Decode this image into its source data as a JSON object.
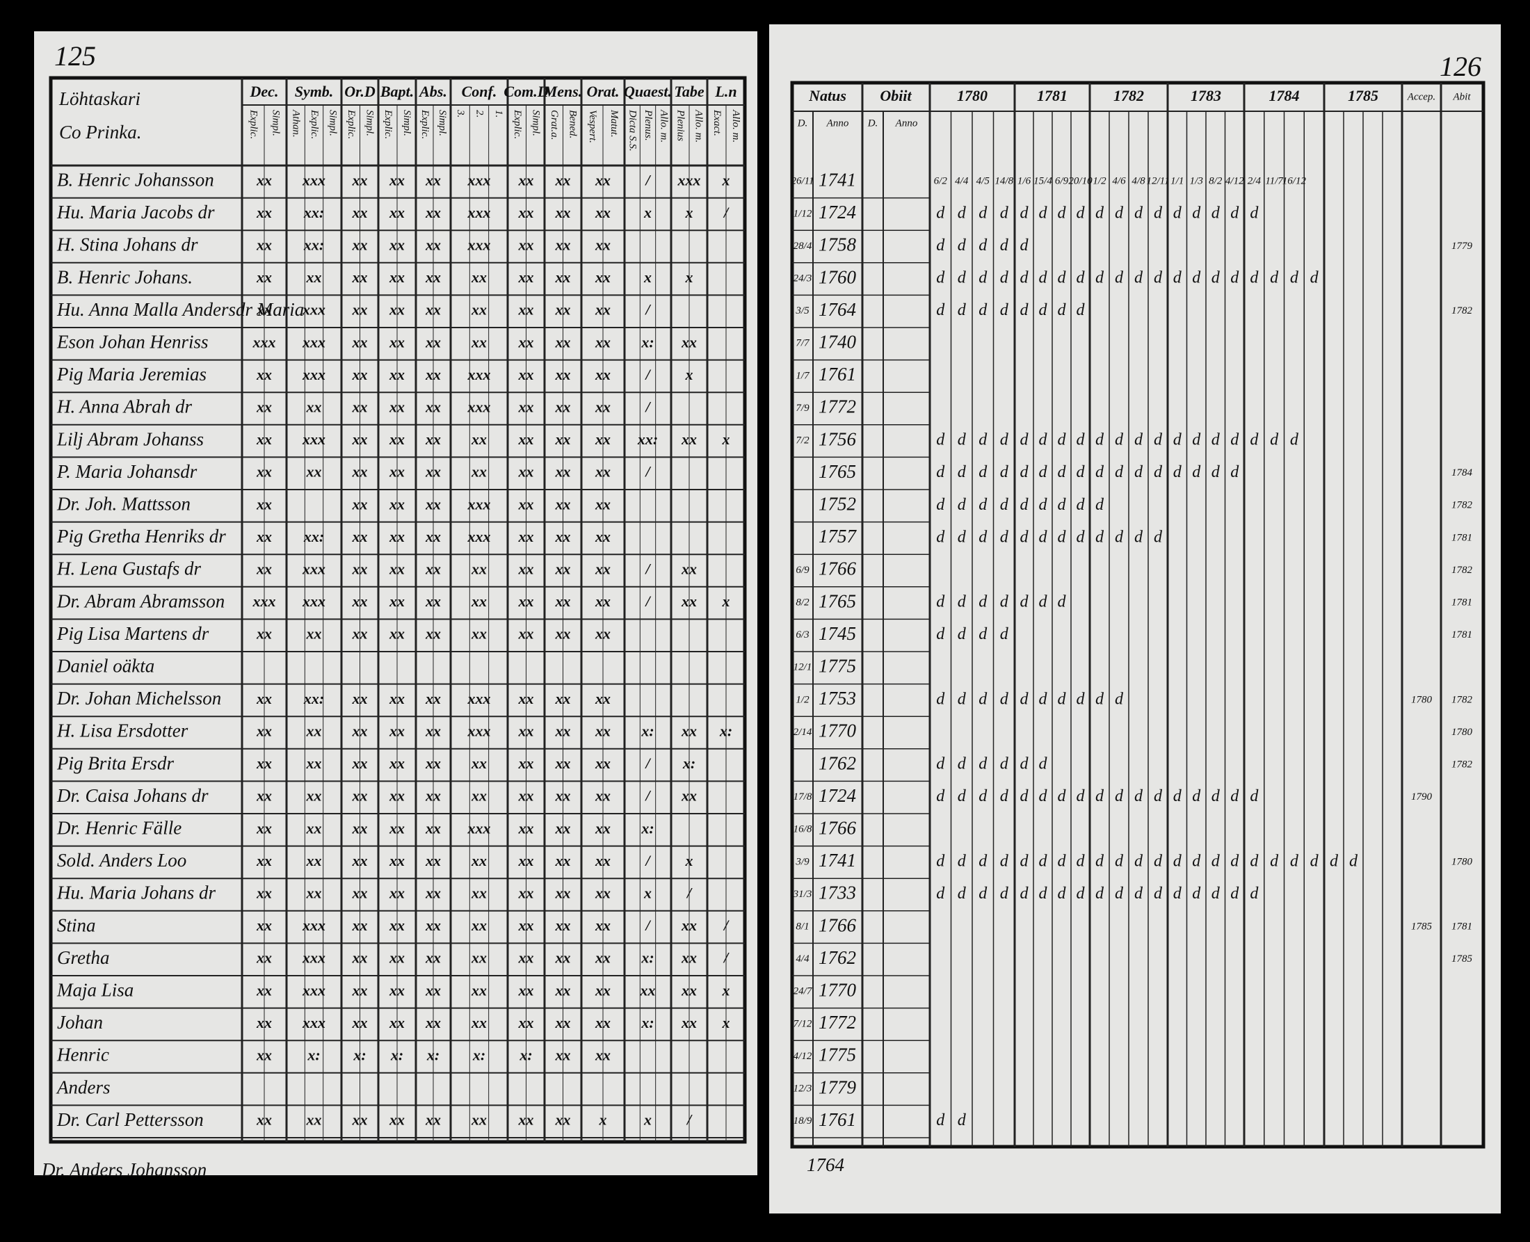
{
  "left_page": {
    "page_number": "125",
    "title_lines": [
      "Löhtaskari",
      "Co Prinka."
    ],
    "headers": [
      {
        "label": "Dec.",
        "sub": [
          "Explic.",
          "Simpl."
        ]
      },
      {
        "label": "Symb.",
        "sub": [
          "Athan.",
          "Explic.",
          "Simpl."
        ]
      },
      {
        "label": "Or.D",
        "sub": [
          "Explic.",
          "Simpl."
        ]
      },
      {
        "label": "Bapt.",
        "sub": [
          "Explic.",
          "Simpl."
        ]
      },
      {
        "label": "Abs.",
        "sub": [
          "Explic.",
          "Simpl."
        ]
      },
      {
        "label": "Conf.",
        "sub": [
          "3.",
          "2.",
          "1."
        ]
      },
      {
        "label": "Com.D",
        "sub": [
          "Explic.",
          "Simpl."
        ]
      },
      {
        "label": "Mens.",
        "sub": [
          "Grat.a.",
          "Bened."
        ]
      },
      {
        "label": "Orat.",
        "sub": [
          "Vespert.",
          "Matut."
        ]
      },
      {
        "label": "Quaest.",
        "sub": [
          "Dicta S.S.",
          "Plenus.",
          "Allo. m."
        ]
      },
      {
        "label": "Tabe",
        "sub": [
          "Plenius",
          "Allo. m."
        ]
      },
      {
        "label": "L.n",
        "sub": [
          "Exact.",
          "Allo. m."
        ]
      }
    ],
    "rows": [
      {
        "name": "B. Henric Johansson",
        "marks": [
          "xx",
          "xxx",
          "xx",
          "xx",
          "xx",
          "xxx",
          "xx",
          "xx",
          "xx",
          "/",
          "xxx",
          "x"
        ]
      },
      {
        "name": "Hu. Maria Jacobs dr",
        "marks": [
          "xx",
          "xx:",
          "xx",
          "xx",
          "xx",
          "xxx",
          "xx",
          "xx",
          "xx",
          "x",
          "x",
          "/"
        ]
      },
      {
        "name": "H. Stina Johans dr",
        "marks": [
          "xx",
          "xx:",
          "xx",
          "xx",
          "xx",
          "xxx",
          "xx",
          "xx",
          "xx"
        ]
      },
      {
        "name": "B. Henric Johans.",
        "marks": [
          "xx",
          "xx",
          "xx",
          "xx",
          "xx",
          "xx",
          "xx",
          "xx",
          "xx",
          "x",
          "x"
        ]
      },
      {
        "name": "Hu. Anna Malla Andersdr Maria",
        "marks": [
          "xx",
          "xxx",
          "xx",
          "xx",
          "xx",
          "xx",
          "xx",
          "xx",
          "xx",
          "/"
        ]
      },
      {
        "name": "Eson Johan Henriss",
        "marks": [
          "xxx",
          "xxx",
          "xx",
          "xx",
          "xx",
          "xx",
          "xx",
          "xx",
          "xx",
          "x:",
          "xx"
        ]
      },
      {
        "name": "Pig Maria Jeremias",
        "marks": [
          "xx",
          "xxx",
          "xx",
          "xx",
          "xx",
          "xxx",
          "xx",
          "xx",
          "xx",
          "/",
          "x"
        ]
      },
      {
        "name": "H. Anna Abrah dr",
        "marks": [
          "xx",
          "xx",
          "xx",
          "xx",
          "xx",
          "xxx",
          "xx",
          "xx",
          "xx",
          "/"
        ]
      },
      {
        "name": "Lilj Abram Johanss",
        "marks": [
          "xx",
          "xxx",
          "xx",
          "xx",
          "xx",
          "xx",
          "xx",
          "xx",
          "xx",
          "xx:",
          "xx",
          "x"
        ]
      },
      {
        "name": "P. Maria Johansdr",
        "marks": [
          "xx",
          "xx",
          "xx",
          "xx",
          "xx",
          "xx",
          "xx",
          "xx",
          "xx",
          "/"
        ]
      },
      {
        "name": "Dr. Joh. Mattsson",
        "marks": [
          "xx",
          "",
          "xx",
          "xx",
          "xx",
          "xxx",
          "xx",
          "xx",
          "xx"
        ]
      },
      {
        "name": "Pig Gretha Henriks dr",
        "marks": [
          "xx",
          "xx:",
          "xx",
          "xx",
          "xx",
          "xxx",
          "xx",
          "xx",
          "xx"
        ]
      },
      {
        "name": "H. Lena Gustafs dr",
        "marks": [
          "xx",
          "xxx",
          "xx",
          "xx",
          "xx",
          "xx",
          "xx",
          "xx",
          "xx",
          "/",
          "xx"
        ]
      },
      {
        "name": "Dr. Abram Abramsson",
        "marks": [
          "xxx",
          "xxx",
          "xx",
          "xx",
          "xx",
          "xx",
          "xx",
          "xx",
          "xx",
          "/",
          "xx",
          "x"
        ]
      },
      {
        "name": "Pig Lisa Martens dr",
        "marks": [
          "xx",
          "xx",
          "xx",
          "xx",
          "xx",
          "xx",
          "xx",
          "xx",
          "xx"
        ]
      },
      {
        "name": "Daniel oäkta",
        "marks": []
      },
      {
        "name": "Dr. Johan Michelsson",
        "marks": [
          "xx",
          "xx:",
          "xx",
          "xx",
          "xx",
          "xxx",
          "xx",
          "xx",
          "xx"
        ]
      },
      {
        "name": "H. Lisa Ersdotter",
        "marks": [
          "xx",
          "xx",
          "xx",
          "xx",
          "xx",
          "xxx",
          "xx",
          "xx",
          "xx",
          "x:",
          "xx",
          "x:"
        ]
      },
      {
        "name": "Pig Brita Ersdr",
        "marks": [
          "xx",
          "xx",
          "xx",
          "xx",
          "xx",
          "xx",
          "xx",
          "xx",
          "xx",
          "/",
          "x:"
        ]
      },
      {
        "name": "Dr. Caisa Johans dr",
        "marks": [
          "xx",
          "xx",
          "xx",
          "xx",
          "xx",
          "xx",
          "xx",
          "xx",
          "xx",
          "/",
          "xx"
        ]
      },
      {
        "name": "Dr. Henric Fälle",
        "marks": [
          "xx",
          "xx",
          "xx",
          "xx",
          "xx",
          "xxx",
          "xx",
          "xx",
          "xx",
          "x:"
        ]
      },
      {
        "name": "Sold. Anders Loo",
        "marks": [
          "xx",
          "xx",
          "xx",
          "xx",
          "xx",
          "xx",
          "xx",
          "xx",
          "xx",
          "/",
          "x"
        ]
      },
      {
        "name": "Hu. Maria Johans dr",
        "marks": [
          "xx",
          "xx",
          "xx",
          "xx",
          "xx",
          "xx",
          "xx",
          "xx",
          "xx",
          "x",
          "/"
        ]
      },
      {
        "name": "Stina",
        "marks": [
          "xx",
          "xxx",
          "xx",
          "xx",
          "xx",
          "xx",
          "xx",
          "xx",
          "xx",
          "/",
          "xx",
          "/"
        ]
      },
      {
        "name": "Gretha",
        "marks": [
          "xx",
          "xxx",
          "xx",
          "xx",
          "xx",
          "xx",
          "xx",
          "xx",
          "xx",
          "x:",
          "xx",
          "/"
        ]
      },
      {
        "name": "Maja Lisa",
        "marks": [
          "xx",
          "xxx",
          "xx",
          "xx",
          "xx",
          "xx",
          "xx",
          "xx",
          "xx",
          "xx",
          "xx",
          "x"
        ]
      },
      {
        "name": "Johan",
        "marks": [
          "xx",
          "xxx",
          "xx",
          "xx",
          "xx",
          "xx",
          "xx",
          "xx",
          "xx",
          "x:",
          "xx",
          "x"
        ]
      },
      {
        "name": "Henric",
        "marks": [
          "xx",
          "x:",
          "x:",
          "x:",
          "x:",
          "x:",
          "x:",
          "xx",
          "xx"
        ]
      },
      {
        "name": "Anders",
        "marks": []
      },
      {
        "name": "Dr. Carl Pettersson",
        "marks": [
          "xx",
          "xx",
          "xx",
          "xx",
          "xx",
          "xx",
          "xx",
          "xx",
          "x",
          "x",
          "/"
        ]
      }
    ],
    "footer": "Dr. Anders Johansson"
  },
  "right_page": {
    "page_number": "126",
    "natus": "Natus",
    "obiit": "Obiit",
    "day": "D.",
    "anno": "Anno",
    "years": [
      "1780",
      "1781",
      "1782",
      "1783",
      "1784",
      "1785"
    ],
    "accep": "Accep.",
    "abit": "Abit",
    "rows": [
      {
        "day": "26/11",
        "year": "1741",
        "marks": [
          "6/2",
          "4/4",
          "4/5",
          "14/8",
          "1/6",
          "15/4",
          "6/9",
          "20/10",
          "1/2",
          "4/6",
          "4/8",
          "12/11",
          "1/1",
          "1/3",
          "8/2",
          "4/12",
          "2/4",
          "11/7",
          "16/12"
        ]
      },
      {
        "day": "1/12",
        "year": "1724",
        "marks": [
          "d",
          "d",
          "d",
          "d",
          "d",
          "d",
          "d",
          "d",
          "d",
          "d",
          "d",
          "d",
          "d",
          "d",
          "d",
          "d",
          "d"
        ]
      },
      {
        "day": "28/4",
        "year": "1758",
        "marks": [
          "d",
          "d",
          "d",
          "d",
          "d"
        ],
        "abit": "1779"
      },
      {
        "day": "24/3",
        "year": "1760",
        "marks": [
          "d",
          "d",
          "d",
          "d",
          "d",
          "d",
          "d",
          "d",
          "d",
          "d",
          "d",
          "d",
          "d",
          "d",
          "d",
          "d",
          "d",
          "d",
          "d",
          "d"
        ]
      },
      {
        "day": "3/5",
        "year": "1764",
        "marks": [
          "d",
          "d",
          "d",
          "d",
          "d",
          "d",
          "d",
          "d"
        ],
        "abit": "1782"
      },
      {
        "day": "7/7",
        "year": "1740",
        "marks": []
      },
      {
        "day": "1/7",
        "year": "1761",
        "marks": []
      },
      {
        "day": "7/9",
        "year": "1772",
        "marks": []
      },
      {
        "day": "7/2",
        "year": "1756",
        "marks": [
          "d",
          "d",
          "d",
          "d",
          "d",
          "d",
          "d",
          "d",
          "d",
          "d",
          "d",
          "d",
          "d",
          "d",
          "d",
          "d",
          "d",
          "d",
          "d"
        ]
      },
      {
        "year": "1765",
        "marks": [
          "d",
          "d",
          "d",
          "d",
          "d",
          "d",
          "d",
          "d",
          "d",
          "d",
          "d",
          "d",
          "d",
          "d",
          "d",
          "d"
        ],
        "abit": "1784"
      },
      {
        "year": "1752",
        "marks": [
          "d",
          "d",
          "d",
          "d",
          "d",
          "d",
          "d",
          "d",
          "d"
        ],
        "abit": "1782"
      },
      {
        "year": "1757",
        "marks": [
          "d",
          "d",
          "d",
          "d",
          "d",
          "d",
          "d",
          "d",
          "d",
          "d",
          "d",
          "d"
        ],
        "abit": "1781"
      },
      {
        "day": "6/9",
        "year": "1766",
        "marks": [],
        "abit": "1782"
      },
      {
        "day": "8/2",
        "year": "1765",
        "marks": [
          "d",
          "d",
          "d",
          "d",
          "d",
          "d",
          "d"
        ],
        "abit": "1781"
      },
      {
        "day": "6/3",
        "year": "1745",
        "marks": [
          "d",
          "d",
          "d",
          "d"
        ],
        "abit": "1781"
      },
      {
        "day": "12/1",
        "year": "1775",
        "marks": []
      },
      {
        "day": "1/2",
        "year": "1753",
        "marks": [
          "d",
          "d",
          "d",
          "d",
          "d",
          "d",
          "d",
          "d",
          "d",
          "d"
        ],
        "accep": "1780",
        "abit": "1782"
      },
      {
        "day": "2/14",
        "year": "1770",
        "marks": [],
        "abit": "1780"
      },
      {
        "year": "1762",
        "marks": [
          "d",
          "d",
          "d",
          "d",
          "d",
          "d"
        ],
        "abit": "1782"
      },
      {
        "day": "17/8",
        "year": "1724",
        "marks": [
          "d",
          "d",
          "d",
          "d",
          "d",
          "d",
          "d",
          "d",
          "d",
          "d",
          "d",
          "d",
          "d",
          "d",
          "d",
          "d",
          "d"
        ],
        "accep": "1790"
      },
      {
        "day": "16/8",
        "year": "1766",
        "marks": []
      },
      {
        "day": "3/9",
        "year": "1741",
        "marks": [
          "d",
          "d",
          "d",
          "d",
          "d",
          "d",
          "d",
          "d",
          "d",
          "d",
          "d",
          "d",
          "d",
          "d",
          "d",
          "d",
          "d",
          "d",
          "d",
          "d",
          "d",
          "d"
        ],
        "abit": "1780"
      },
      {
        "day": "31/3",
        "year": "1733",
        "marks": [
          "d",
          "d",
          "d",
          "d",
          "d",
          "d",
          "d",
          "d",
          "d",
          "d",
          "d",
          "d",
          "d",
          "d",
          "d",
          "d",
          "d"
        ]
      },
      {
        "day": "8/1",
        "year": "1766",
        "marks": [],
        "accep": "1785",
        "abit": "1781"
      },
      {
        "day": "4/4",
        "year": "1762",
        "marks": [],
        "abit": "1785"
      },
      {
        "day": "24/7",
        "year": "1770",
        "marks": []
      },
      {
        "day": "7/12",
        "year": "1772",
        "marks": []
      },
      {
        "day": "4/12",
        "year": "1775",
        "marks": []
      },
      {
        "day": "12/3",
        "year": "1779",
        "marks": []
      },
      {
        "day": "18/9",
        "year": "1761",
        "marks": [
          "d",
          "d"
        ]
      }
    ],
    "footer": "1764"
  }
}
